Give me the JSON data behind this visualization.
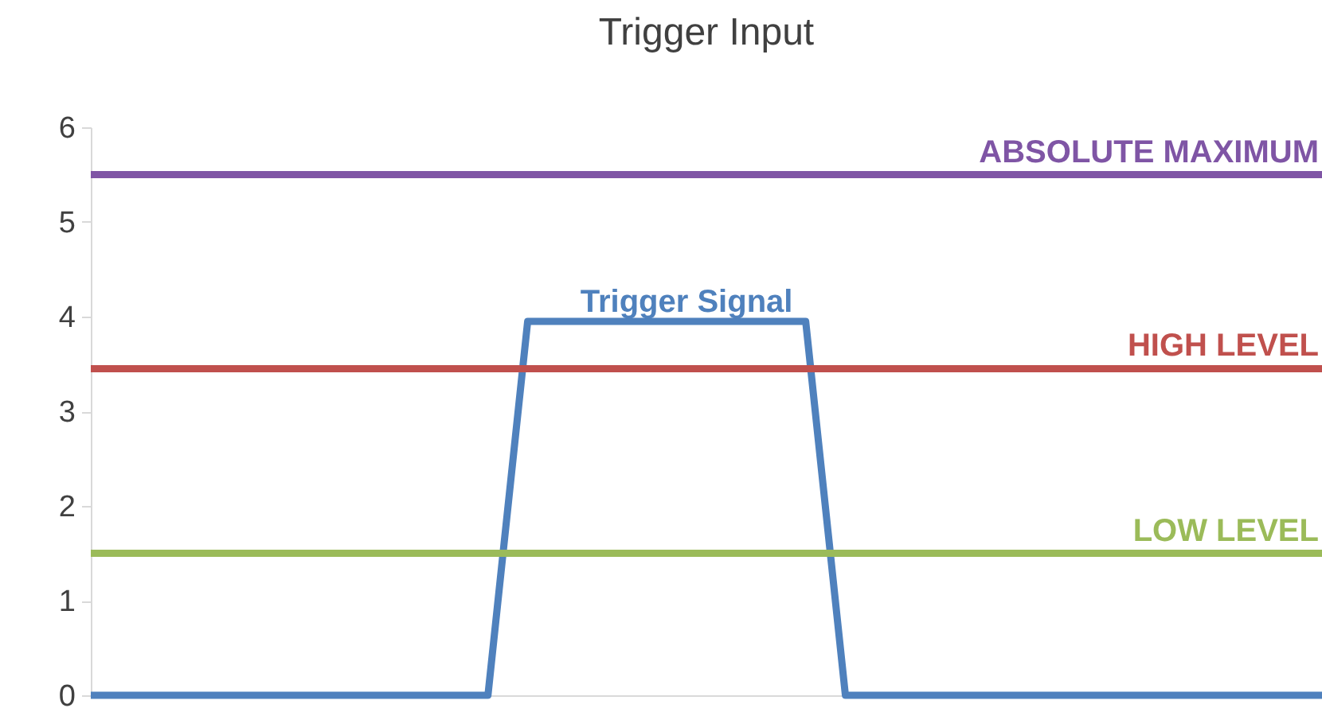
{
  "chart_data": {
    "type": "line",
    "title": "Trigger Input",
    "categories": [
      null,
      null,
      null,
      null,
      null,
      null,
      null,
      null,
      null,
      null,
      null,
      null,
      null,
      null,
      null,
      null,
      null,
      null,
      null,
      null,
      null,
      null,
      null,
      null,
      null,
      null,
      null,
      null,
      null,
      null,
      null,
      null
    ],
    "series": [
      {
        "name": "Trigger Signal",
        "color": "#4f81bd",
        "values": [
          0,
          0,
          0,
          0,
          0,
          0,
          0,
          0,
          0,
          0,
          0,
          3.95,
          3.95,
          3.95,
          3.95,
          3.95,
          3.95,
          3.95,
          3.95,
          0,
          0,
          0,
          0,
          0,
          0,
          0,
          0,
          0,
          0,
          0,
          0,
          0
        ]
      }
    ],
    "ylim": [
      0,
      6
    ],
    "yticks": [
      0,
      1,
      2,
      3,
      4,
      5,
      6
    ],
    "grid": false,
    "legend": false,
    "ref_lines": [
      {
        "axis": "y",
        "value": 5.5,
        "label": "ABSOLUTE MAXIMUM",
        "color": "#7f55a5"
      },
      {
        "axis": "y",
        "value": 3.45,
        "label": "HIGH LEVEL",
        "color": "#c0504d"
      },
      {
        "axis": "y",
        "value": 1.5,
        "label": "LOW LEVEL",
        "color": "#9bbb59"
      }
    ]
  }
}
